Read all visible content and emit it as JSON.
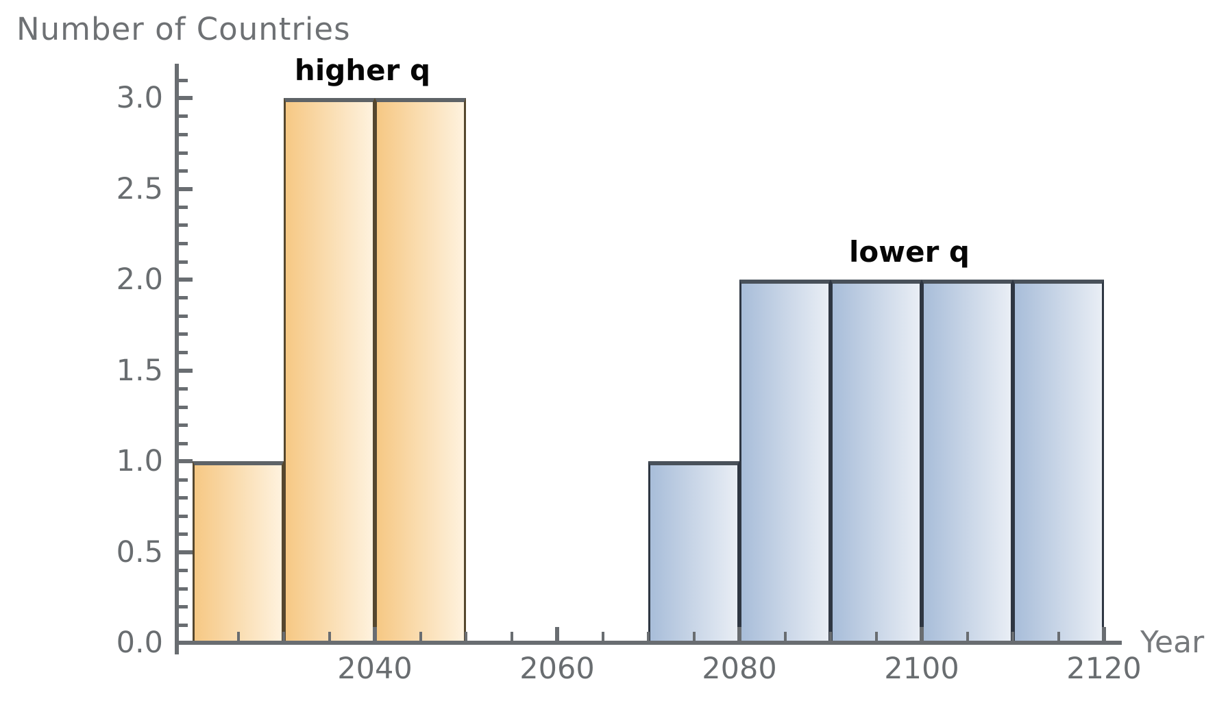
{
  "chart_data": {
    "type": "bar",
    "subtype": "histogram",
    "title": "Number of Countries",
    "ylabel": "Number of Countries",
    "xlabel": "Year",
    "x_ticks": [
      {
        "value": 2040,
        "label": "2040"
      },
      {
        "value": 2060,
        "label": "2060"
      },
      {
        "value": 2080,
        "label": "2080"
      },
      {
        "value": 2100,
        "label": "2100"
      },
      {
        "value": 2120,
        "label": "2120"
      }
    ],
    "x_minor_range": [
      2025,
      2115
    ],
    "x_minor_step": 5,
    "y_ticks": [
      {
        "value": 0.0,
        "label": "0.0"
      },
      {
        "value": 0.5,
        "label": "0.5"
      },
      {
        "value": 1.0,
        "label": "1.0"
      },
      {
        "value": 1.5,
        "label": "1.5"
      },
      {
        "value": 2.0,
        "label": "2.0"
      },
      {
        "value": 2.5,
        "label": "2.5"
      },
      {
        "value": 3.0,
        "label": "3.0"
      }
    ],
    "y_minor_step": 0.1,
    "y_minor_max": 3.1,
    "xlim": [
      2018,
      2122
    ],
    "ylim": [
      0,
      3.2
    ],
    "grid": false,
    "bin_width": 10,
    "series": [
      {
        "name": "higher q",
        "label": {
          "text": "higher q",
          "center_year": 2040,
          "top_value": 3
        },
        "gradient": [
          "#f6c884",
          "#fef2de"
        ],
        "edge_color": "#55472e",
        "top_edge_color": "#5e6367",
        "bins": [
          {
            "start": 2020,
            "end": 2030,
            "count": 1
          },
          {
            "start": 2030,
            "end": 2040,
            "count": 3
          },
          {
            "start": 2040,
            "end": 2050,
            "count": 3
          }
        ]
      },
      {
        "name": "lower q",
        "label": {
          "text": "lower q",
          "center_year": 2100,
          "top_value": 2
        },
        "gradient": [
          "#a8bdd9",
          "#e9eef5"
        ],
        "edge_color": "#2e3642",
        "top_edge_color": "#49515a",
        "bins": [
          {
            "start": 2070,
            "end": 2080,
            "count": 1
          },
          {
            "start": 2080,
            "end": 2090,
            "count": 2
          },
          {
            "start": 2090,
            "end": 2100,
            "count": 2
          },
          {
            "start": 2100,
            "end": 2110,
            "count": 2
          },
          {
            "start": 2110,
            "end": 2120,
            "count": 2
          }
        ]
      }
    ],
    "colors": {
      "axis": "#696d71",
      "tick_label": "#696d70",
      "title_label": "#6e7174",
      "x_axis_word": "#76797c",
      "series_label_text": "#060606",
      "background": "#ffffff"
    }
  }
}
